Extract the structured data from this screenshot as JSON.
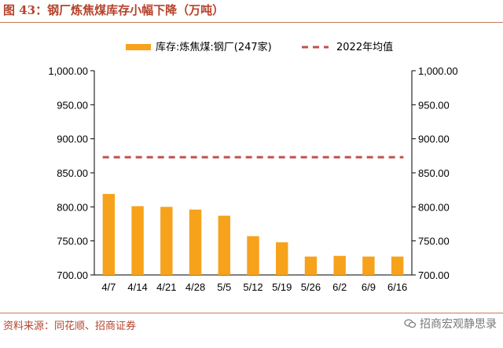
{
  "header": {
    "title": "图 43：钢厂炼焦煤库存小幅下降（万吨）"
  },
  "footer": {
    "source": "资料来源：同花顺、招商证券",
    "watermark": "招商宏观静思录"
  },
  "chart_data": {
    "type": "bar",
    "categories": [
      "4/7",
      "4/14",
      "4/21",
      "4/28",
      "5/5",
      "5/12",
      "5/19",
      "5/26",
      "6/2",
      "6/9",
      "6/16"
    ],
    "series": [
      {
        "name": "库存:炼焦煤:钢厂(247家)",
        "type": "bar",
        "color": "#f7a21b",
        "values": [
          819,
          801,
          800,
          796,
          787,
          757,
          748,
          727,
          728,
          727,
          727
        ]
      },
      {
        "name": "2022年均值",
        "type": "line",
        "style": "dashed",
        "color": "#c0504d",
        "value": 873
      }
    ],
    "ylim": [
      700,
      1000
    ],
    "yticks": [
      "1,000.00",
      "950.00",
      "900.00",
      "850.00",
      "800.00",
      "750.00",
      "700.00"
    ],
    "grid": false,
    "legend": "top"
  }
}
